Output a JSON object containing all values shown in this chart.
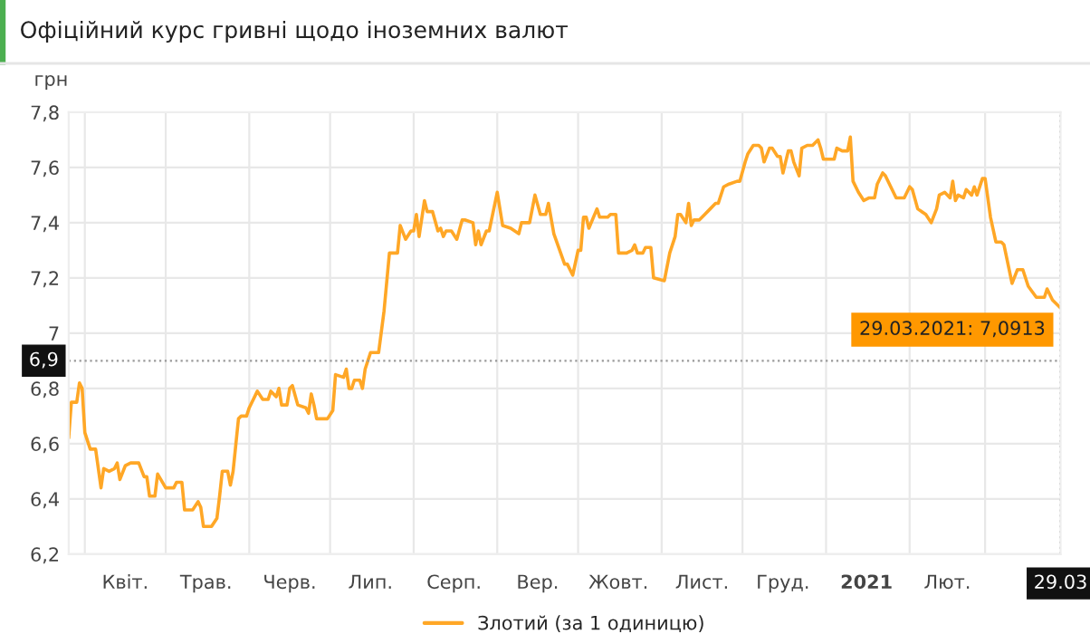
{
  "chart_data": {
    "type": "line",
    "title": "Офіційний курс гривні щодо іноземних валют",
    "ylabel": "грн",
    "x": [
      "2020-03-26",
      "2020-03-27",
      "2020-03-29",
      "2020-03-30",
      "2020-03-31",
      "2020-04-01",
      "2020-04-03",
      "2020-04-05",
      "2020-04-07",
      "2020-04-08",
      "2020-04-10",
      "2020-04-12",
      "2020-04-13",
      "2020-04-14",
      "2020-04-16",
      "2020-04-18",
      "2020-04-21",
      "2020-04-23",
      "2020-04-24",
      "2020-04-25",
      "2020-04-27",
      "2020-04-28",
      "2020-05-01",
      "2020-05-04",
      "2020-05-05",
      "2020-05-07",
      "2020-05-08",
      "2020-05-11",
      "2020-05-13",
      "2020-05-14",
      "2020-05-15",
      "2020-05-18",
      "2020-05-20",
      "2020-05-21",
      "2020-05-22",
      "2020-05-24",
      "2020-05-25",
      "2020-05-26",
      "2020-05-28",
      "2020-05-29",
      "2020-05-31",
      "2020-06-01",
      "2020-06-04",
      "2020-06-06",
      "2020-06-08",
      "2020-06-09",
      "2020-06-11",
      "2020-06-12",
      "2020-06-13",
      "2020-06-15",
      "2020-06-16",
      "2020-06-17",
      "2020-06-19",
      "2020-06-22",
      "2020-06-23",
      "2020-06-24",
      "2020-06-25",
      "2020-06-26",
      "2020-06-30",
      "2020-07-02",
      "2020-07-03",
      "2020-07-06",
      "2020-07-07",
      "2020-07-08",
      "2020-07-09",
      "2020-07-10",
      "2020-07-12",
      "2020-07-13",
      "2020-07-14",
      "2020-07-16",
      "2020-07-17",
      "2020-07-19",
      "2020-07-21",
      "2020-07-23",
      "2020-07-24",
      "2020-07-26",
      "2020-07-27",
      "2020-07-29",
      "2020-07-31",
      "2020-08-01",
      "2020-08-02",
      "2020-08-03",
      "2020-08-05",
      "2020-08-06",
      "2020-08-08",
      "2020-08-10",
      "2020-08-11",
      "2020-08-12",
      "2020-08-13",
      "2020-08-15",
      "2020-08-17",
      "2020-08-19",
      "2020-08-20",
      "2020-08-23",
      "2020-08-24",
      "2020-08-25",
      "2020-08-26",
      "2020-08-28",
      "2020-08-29",
      "2020-09-01",
      "2020-09-03",
      "2020-09-06",
      "2020-09-09",
      "2020-09-10",
      "2020-09-13",
      "2020-09-15",
      "2020-09-17",
      "2020-09-19",
      "2020-09-20",
      "2020-09-22",
      "2020-09-26",
      "2020-09-27",
      "2020-09-29",
      "2020-10-01",
      "2020-10-02",
      "2020-10-03",
      "2020-10-04",
      "2020-10-05",
      "2020-10-08",
      "2020-10-09",
      "2020-10-12",
      "2020-10-13",
      "2020-10-15",
      "2020-10-16",
      "2020-10-19",
      "2020-10-21",
      "2020-10-22",
      "2020-10-23",
      "2020-10-25",
      "2020-10-26",
      "2020-10-28",
      "2020-10-29",
      "2020-11-02",
      "2020-11-04",
      "2020-11-06",
      "2020-11-07",
      "2020-11-08",
      "2020-11-10",
      "2020-11-11",
      "2020-11-12",
      "2020-11-13",
      "2020-11-15",
      "2020-11-17",
      "2020-11-19",
      "2020-11-21",
      "2020-11-22",
      "2020-11-24",
      "2020-11-26",
      "2020-11-29",
      "2020-11-30",
      "2020-12-02",
      "2020-12-03",
      "2020-12-05",
      "2020-12-07",
      "2020-12-08",
      "2020-12-09",
      "2020-12-11",
      "2020-12-12",
      "2020-12-14",
      "2020-12-15",
      "2020-12-16",
      "2020-12-18",
      "2020-12-19",
      "2020-12-20",
      "2020-12-22",
      "2020-12-23",
      "2020-12-25",
      "2020-12-27",
      "2020-12-29",
      "2020-12-30",
      "2020-12-31",
      "2021-01-03",
      "2021-01-04",
      "2021-01-05",
      "2021-01-07",
      "2021-01-09",
      "2021-01-10",
      "2021-01-11",
      "2021-01-13",
      "2021-01-15",
      "2021-01-17",
      "2021-01-19",
      "2021-01-20",
      "2021-01-22",
      "2021-01-23",
      "2021-01-25",
      "2021-01-27",
      "2021-01-30",
      "2021-02-01",
      "2021-02-02",
      "2021-02-04",
      "2021-02-07",
      "2021-02-09",
      "2021-02-11",
      "2021-02-12",
      "2021-02-14",
      "2021-02-16",
      "2021-02-17",
      "2021-02-18",
      "2021-02-19",
      "2021-02-21",
      "2021-02-22",
      "2021-02-24",
      "2021-02-25",
      "2021-02-26",
      "2021-02-28",
      "2021-03-01",
      "2021-03-03",
      "2021-03-05",
      "2021-03-07",
      "2021-03-08",
      "2021-03-11",
      "2021-03-13",
      "2021-03-15",
      "2021-03-17",
      "2021-03-20",
      "2021-03-23",
      "2021-03-24",
      "2021-03-26",
      "2021-03-29"
    ],
    "series": [
      {
        "name": "Злотий (за 1 одиницю)",
        "color": "#ffa726",
        "values": [
          6.62,
          6.75,
          6.75,
          6.82,
          6.8,
          6.64,
          6.58,
          6.58,
          6.44,
          6.51,
          6.5,
          6.51,
          6.53,
          6.47,
          6.52,
          6.53,
          6.53,
          6.48,
          6.48,
          6.41,
          6.41,
          6.49,
          6.44,
          6.44,
          6.46,
          6.46,
          6.36,
          6.36,
          6.39,
          6.37,
          6.3,
          6.3,
          6.33,
          6.41,
          6.5,
          6.5,
          6.45,
          6.5,
          6.69,
          6.7,
          6.7,
          6.73,
          6.79,
          6.76,
          6.76,
          6.79,
          6.77,
          6.8,
          6.74,
          6.74,
          6.8,
          6.81,
          6.74,
          6.73,
          6.71,
          6.78,
          6.74,
          6.69,
          6.69,
          6.72,
          6.85,
          6.84,
          6.87,
          6.8,
          6.8,
          6.83,
          6.83,
          6.8,
          6.87,
          6.93,
          6.93,
          6.93,
          7.08,
          7.29,
          7.29,
          7.29,
          7.39,
          7.34,
          7.37,
          7.37,
          7.43,
          7.35,
          7.48,
          7.44,
          7.44,
          7.37,
          7.38,
          7.35,
          7.37,
          7.37,
          7.34,
          7.41,
          7.41,
          7.4,
          7.32,
          7.37,
          7.32,
          7.37,
          7.37,
          7.51,
          7.39,
          7.38,
          7.36,
          7.4,
          7.4,
          7.5,
          7.43,
          7.43,
          7.47,
          7.36,
          7.25,
          7.25,
          7.21,
          7.3,
          7.3,
          7.42,
          7.42,
          7.38,
          7.45,
          7.42,
          7.42,
          7.43,
          7.43,
          7.29,
          7.29,
          7.3,
          7.32,
          7.29,
          7.29,
          7.31,
          7.31,
          7.2,
          7.19,
          7.29,
          7.35,
          7.43,
          7.43,
          7.4,
          7.47,
          7.39,
          7.41,
          7.41,
          7.43,
          7.45,
          7.47,
          7.47,
          7.53,
          7.54,
          7.55,
          7.55,
          7.62,
          7.65,
          7.68,
          7.68,
          7.67,
          7.62,
          7.67,
          7.67,
          7.64,
          7.64,
          7.58,
          7.66,
          7.66,
          7.62,
          7.57,
          7.67,
          7.68,
          7.68,
          7.7,
          7.67,
          7.63,
          7.63,
          7.63,
          7.67,
          7.66,
          7.66,
          7.71,
          7.55,
          7.51,
          7.48,
          7.49,
          7.49,
          7.54,
          7.58,
          7.57,
          7.53,
          7.49,
          7.49,
          7.53,
          7.52,
          7.45,
          7.43,
          7.4,
          7.45,
          7.5,
          7.51,
          7.49,
          7.55,
          7.48,
          7.5,
          7.49,
          7.52,
          7.5,
          7.53,
          7.5,
          7.56,
          7.56,
          7.42,
          7.33,
          7.33,
          7.32,
          7.18,
          7.23,
          7.23,
          7.17,
          7.13,
          7.13,
          7.16,
          7.12,
          7.0913
        ]
      }
    ],
    "xlim": [
      "2020-03-26",
      "2021-03-29"
    ],
    "xticks": [
      {
        "value": "2020-04-01",
        "label": null
      },
      {
        "value": "2020-04-16",
        "label": "Квіт."
      },
      {
        "value": "2020-05-01",
        "label": null
      },
      {
        "value": "2020-05-16",
        "label": "Трав."
      },
      {
        "value": "2020-06-01",
        "label": null
      },
      {
        "value": "2020-06-16",
        "label": "Черв."
      },
      {
        "value": "2020-07-01",
        "label": null
      },
      {
        "value": "2020-07-16",
        "label": "Лип."
      },
      {
        "value": "2020-08-01",
        "label": null
      },
      {
        "value": "2020-08-16",
        "label": "Серп."
      },
      {
        "value": "2020-09-01",
        "label": null
      },
      {
        "value": "2020-09-16",
        "label": "Вер."
      },
      {
        "value": "2020-10-01",
        "label": null
      },
      {
        "value": "2020-10-16",
        "label": "Жовт."
      },
      {
        "value": "2020-11-01",
        "label": null
      },
      {
        "value": "2020-11-16",
        "label": "Лист."
      },
      {
        "value": "2020-12-01",
        "label": null
      },
      {
        "value": "2020-12-16",
        "label": "Груд."
      },
      {
        "value": "2021-01-01",
        "label": null
      },
      {
        "value": "2021-01-16",
        "label": "2021"
      },
      {
        "value": "2021-02-01",
        "label": null
      },
      {
        "value": "2021-02-15",
        "label": "Лют."
      },
      {
        "value": "2021-03-01",
        "label": null
      },
      {
        "value": "2021-03-29",
        "label": "29.03"
      }
    ],
    "ylim": [
      6.2,
      7.8
    ],
    "yticks": [
      {
        "value": 6.2,
        "label": "6,2"
      },
      {
        "value": 6.4,
        "label": "6,4"
      },
      {
        "value": 6.6,
        "label": "6,6"
      },
      {
        "value": 6.8,
        "label": "6,8"
      },
      7,
      {
        "value": 7.2,
        "label": "7,2"
      },
      {
        "value": 7.4,
        "label": "7,4"
      },
      {
        "value": 7.6,
        "label": "7,6"
      },
      {
        "value": 7.8,
        "label": "7,8"
      }
    ],
    "ref_lines": [
      {
        "axis": "y",
        "value": 6.9,
        "label": "6,9",
        "line_style": "dotted",
        "color": "#999999"
      },
      {
        "axis": "x",
        "value": "2021-03-29",
        "line_style": "dotted",
        "color": "#999999"
      }
    ],
    "annotations": [
      {
        "text": "29.03.2021: 7,0913",
        "x": "2021-03-29",
        "y": 7.0913
      }
    ],
    "grid": true,
    "legend": "bottom",
    "marker": "none",
    "line_style": "solid"
  }
}
